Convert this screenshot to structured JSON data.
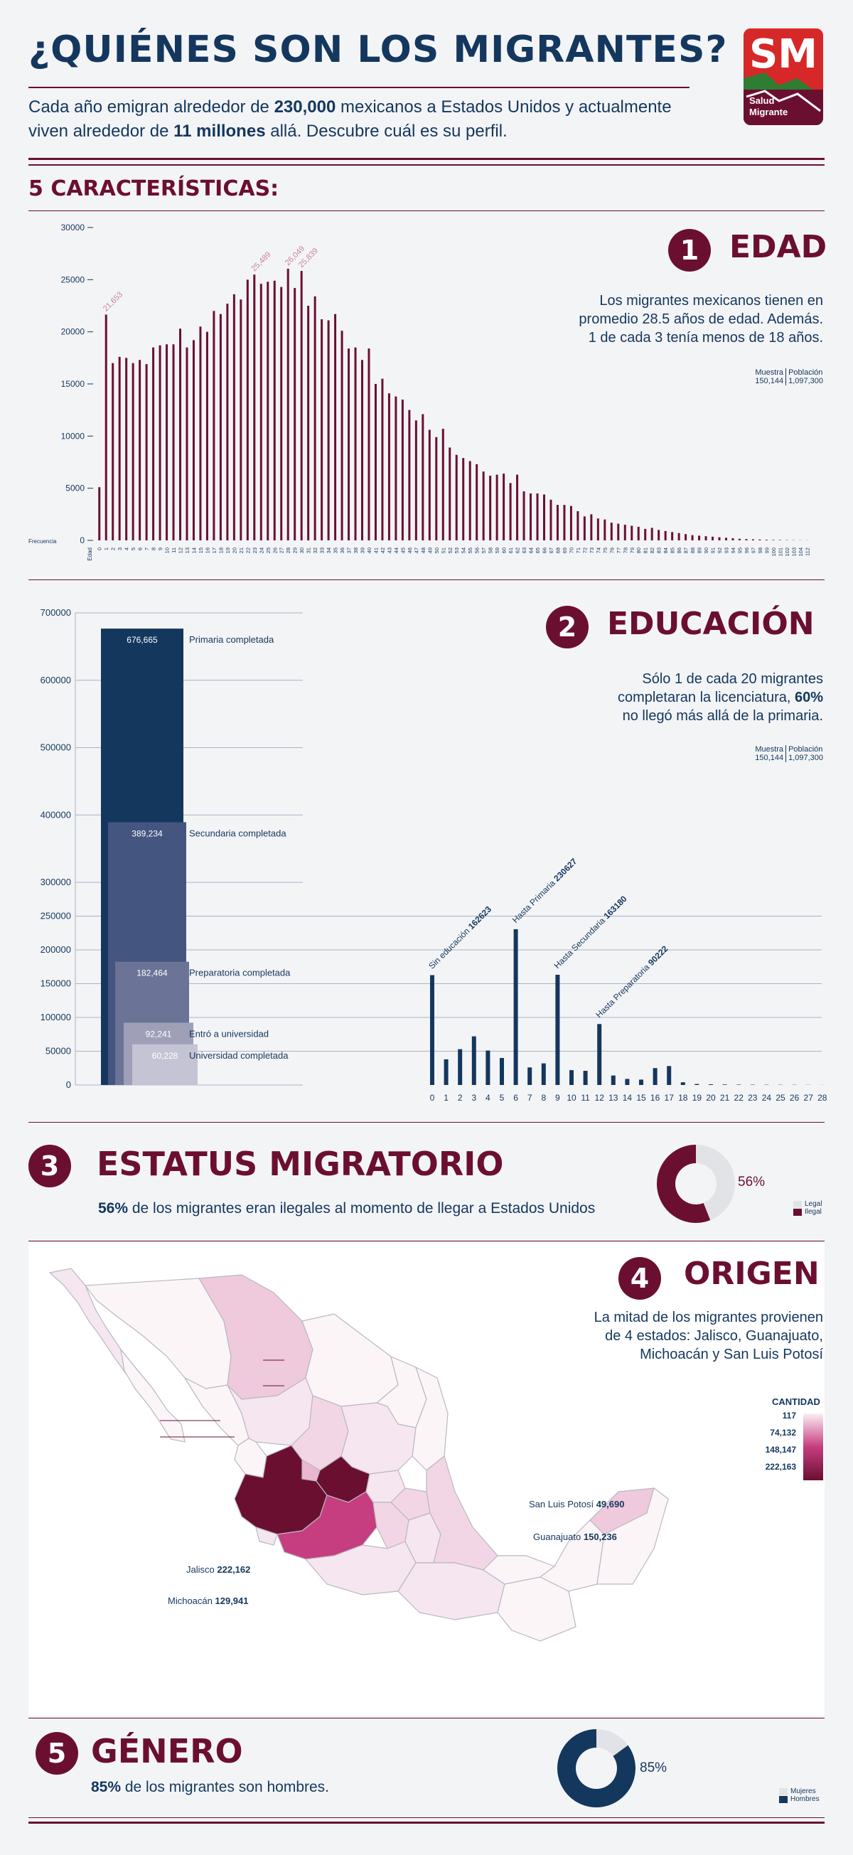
{
  "header": {
    "title": "¿QUIÉNES SON LOS MIGRANTES?",
    "intro_p1": "Cada año emigran alrededor de ",
    "intro_b1": "230,000",
    "intro_p2": " mexicanos a Estados Unidos y actualmente",
    "intro_p3": "viven alrededor de ",
    "intro_b2": "11 millones",
    "intro_p4": " allá. Descubre cuál es su perfil.",
    "logo_initials": "SM",
    "logo_line1": "Salud",
    "logo_line2": "Migrante"
  },
  "features_heading": "5 CARACTERÍSTICAS:",
  "colors": {
    "wine": "#6b0f31",
    "navy": "#14375e",
    "bg": "#f3f4f6",
    "grey": "#e2e3e6"
  },
  "edad": {
    "number": "1",
    "title": "EDAD",
    "desc1": "Los migrantes mexicanos tienen en",
    "desc2": "promedio 28.5 años de edad. Además.",
    "desc3": "1 de cada 3 tenía menos de 18 años.",
    "sample_label": "Muestra",
    "sample_value": "150,144",
    "pop_label": "Población",
    "pop_value": "1,097,300",
    "y_label": "Frecuencia",
    "x_label": "Edad"
  },
  "educacion": {
    "number": "2",
    "title": "EDUCACIÓN",
    "desc1": "Sólo 1 de cada 20 migrantes",
    "desc2": "completaran la licenciatura, ",
    "desc2b": "60%",
    "desc3": "no llegó más allá de la primaria.",
    "sample_label": "Muestra",
    "sample_value": "150,144",
    "pop_label": "Población",
    "pop_value": "1,097,300"
  },
  "estatus": {
    "number": "3",
    "title": "ESTATUS MIGRATORIO",
    "bold": "56%",
    "text": " de los migrantes eran ilegales al momento de llegar a Estados Unidos",
    "donut_label": "56%",
    "legend": [
      "Legal",
      "Ilegal"
    ]
  },
  "origen": {
    "number": "4",
    "title": "ORIGEN",
    "desc1": "La mitad de los migrantes provienen",
    "desc2": "de 4 estados: Jalisco, Guanajuato,",
    "desc3": "Michoacán y San Luis Potosí",
    "legend_title": "CANTIDAD",
    "legend_values": [
      "117",
      "74,132",
      "148,147",
      "222,163"
    ],
    "callouts": [
      {
        "name": "San Luis Potosí",
        "value": "49,690"
      },
      {
        "name": "Guanajuato",
        "value": "150,236"
      },
      {
        "name": "Jalisco",
        "value": "222,162"
      },
      {
        "name": "Michoacán",
        "value": "129,941"
      }
    ]
  },
  "genero": {
    "number": "5",
    "title": "GÉNERO",
    "bold": "85%",
    "text": " de los migrantes son hombres.",
    "donut_label": "85%",
    "legend": [
      "Mujeres",
      "Hombres"
    ]
  },
  "chart_data": [
    {
      "type": "bar",
      "name": "edad",
      "xlabel": "Edad",
      "ylabel": "Frecuencia",
      "ylim": [
        0,
        30000
      ],
      "yticks": [
        0,
        5000,
        10000,
        15000,
        20000,
        25000,
        30000
      ],
      "x": [
        0,
        1,
        2,
        3,
        4,
        5,
        6,
        7,
        8,
        9,
        10,
        11,
        12,
        13,
        14,
        15,
        16,
        17,
        18,
        19,
        20,
        21,
        22,
        23,
        24,
        25,
        26,
        27,
        28,
        29,
        30,
        31,
        32,
        33,
        34,
        35,
        36,
        37,
        38,
        39,
        40,
        41,
        42,
        43,
        44,
        45,
        46,
        47,
        48,
        49,
        50,
        51,
        52,
        53,
        54,
        55,
        56,
        57,
        58,
        59,
        60,
        61,
        62,
        63,
        64,
        65,
        66,
        67,
        68,
        69,
        70,
        71,
        72,
        73,
        74,
        75,
        76,
        77,
        78,
        79,
        80,
        81,
        82,
        83,
        84,
        85,
        86,
        87,
        88,
        89,
        90,
        91,
        92,
        93,
        94,
        95,
        96,
        97,
        98,
        99,
        100,
        101,
        102,
        103,
        104,
        112
      ],
      "values": [
        5100,
        21653,
        17000,
        17600,
        17500,
        17000,
        17300,
        16900,
        18500,
        18700,
        18800,
        18800,
        20300,
        18500,
        19200,
        20500,
        20000,
        22000,
        21700,
        22700,
        23600,
        23100,
        25000,
        25489,
        24600,
        24800,
        24900,
        24300,
        26049,
        24200,
        25839,
        22500,
        23400,
        21200,
        21100,
        21700,
        20100,
        18400,
        18500,
        17300,
        18400,
        15000,
        15500,
        14100,
        13800,
        13500,
        12500,
        11500,
        12100,
        10600,
        9900,
        10700,
        8900,
        8200,
        7900,
        7600,
        7300,
        6600,
        6200,
        6300,
        6400,
        5500,
        6300,
        4700,
        4500,
        4500,
        4400,
        3900,
        3400,
        3400,
        3300,
        2800,
        2300,
        2500,
        2100,
        2000,
        1700,
        1600,
        1500,
        1400,
        1300,
        1100,
        1200,
        1000,
        900,
        800,
        700,
        600,
        500,
        450,
        400,
        350,
        300,
        250,
        200,
        150,
        120,
        100,
        80,
        60,
        50,
        40,
        30,
        20,
        15,
        10
      ],
      "annotations": [
        "21,653",
        "25,489",
        "26,049",
        "25,839"
      ]
    },
    {
      "type": "bar",
      "name": "educacion-acumulado",
      "ylim": [
        0,
        700000
      ],
      "yticks": [
        0,
        50000,
        100000,
        150000,
        200000,
        250000,
        300000,
        400000,
        500000,
        600000,
        700000
      ],
      "categories": [
        "Primaria completada",
        "Secundaria completada",
        "Preparatoria completada",
        "Entró a universidad",
        "Universidad completada"
      ],
      "values": [
        676665,
        389234,
        182464,
        92241,
        60228
      ],
      "value_labels": [
        "676,665",
        "389,234",
        "182,464",
        "92,241",
        "60,228"
      ]
    },
    {
      "type": "bar",
      "name": "educacion-anios",
      "x": [
        0,
        1,
        2,
        3,
        4,
        5,
        6,
        7,
        8,
        9,
        10,
        11,
        12,
        13,
        14,
        15,
        16,
        17,
        18,
        19,
        20,
        21,
        22,
        23,
        24,
        25,
        26,
        27,
        28
      ],
      "values": [
        162623,
        38000,
        53000,
        72000,
        51000,
        40000,
        230627,
        26000,
        32000,
        163180,
        22000,
        21000,
        90222,
        14000,
        9000,
        8000,
        25000,
        28000,
        4000,
        1500,
        1000,
        800,
        600,
        500,
        400,
        300,
        300,
        200,
        100
      ],
      "annotations": [
        {
          "x": 0,
          "label": "Sin educación",
          "value": "162623"
        },
        {
          "x": 6,
          "label": "Hasta Primaria",
          "value": "230627"
        },
        {
          "x": 9,
          "label": "Hasta Secundaria",
          "value": "163180"
        },
        {
          "x": 12,
          "label": "Hasta Preparatoria",
          "value": "90222"
        }
      ]
    },
    {
      "type": "pie",
      "name": "estatus",
      "categories": [
        "Legal",
        "Ilegal"
      ],
      "values": [
        44,
        56
      ]
    },
    {
      "type": "pie",
      "name": "genero",
      "categories": [
        "Mujeres",
        "Hombres"
      ],
      "values": [
        15,
        85
      ]
    }
  ]
}
